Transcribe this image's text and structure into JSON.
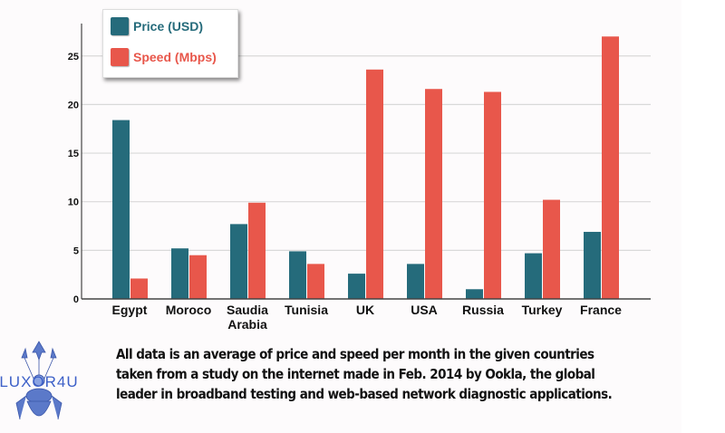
{
  "chart_data": {
    "type": "bar",
    "title": "",
    "xlabel": "",
    "ylabel": "",
    "ylim": [
      0,
      27.5
    ],
    "yticks": [
      0,
      5,
      10,
      15,
      20,
      25
    ],
    "grid": true,
    "legend_position": "top-left",
    "categories": [
      "Egypt",
      "Moroco",
      "Saudia Arabia",
      "Tunisia",
      "UK",
      "USA",
      "Russia",
      "Turkey",
      "France"
    ],
    "category_lines": [
      [
        "Egypt"
      ],
      [
        "Moroco"
      ],
      [
        "Saudia",
        "Arabia"
      ],
      [
        "Tunisia"
      ],
      [
        "UK"
      ],
      [
        "USA"
      ],
      [
        "Russia"
      ],
      [
        "Turkey"
      ],
      [
        "France"
      ]
    ],
    "series": [
      {
        "name": "Price (USD)",
        "color": "#256b7b",
        "values": [
          18.4,
          5.2,
          7.7,
          4.9,
          2.6,
          3.6,
          1.0,
          4.7,
          6.9
        ]
      },
      {
        "name": "Speed (Mbps)",
        "color": "#e8574b",
        "values": [
          2.1,
          4.5,
          9.9,
          3.6,
          23.6,
          21.6,
          21.3,
          10.2,
          27.0
        ]
      }
    ]
  },
  "caption": [
    "All data is an average of price and speed per month in the given countries",
    "taken from a study on the internet made in Feb. 2014 by Ookla, the global",
    "leader in broadband testing and web-based network diagnostic applications."
  ],
  "logo": {
    "text": "LUXOR4U"
  }
}
